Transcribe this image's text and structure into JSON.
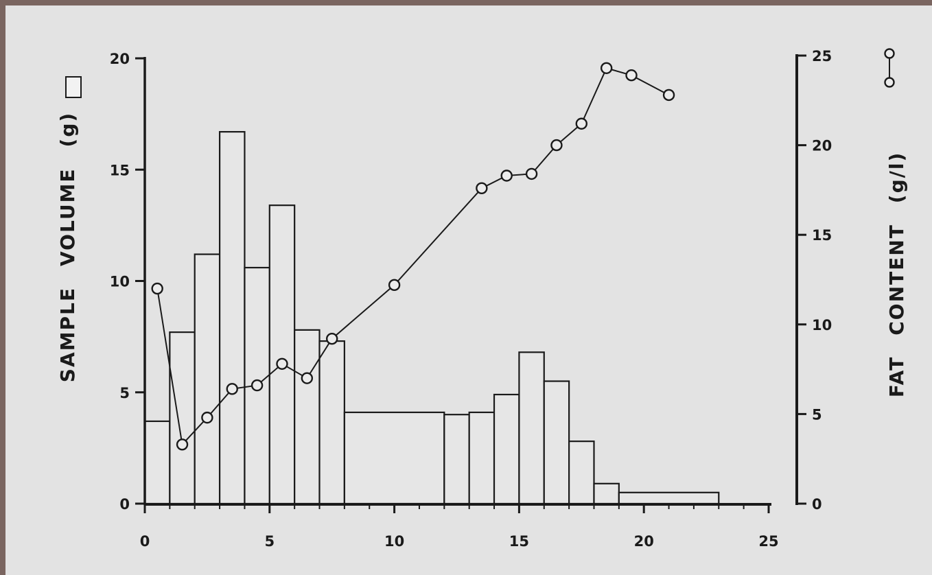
{
  "chart_data": {
    "type": "bar",
    "title": "",
    "xlabel": "",
    "x_ticks": [
      "0",
      "5",
      "10",
      "15",
      "20",
      "25"
    ],
    "xlim": [
      0,
      25
    ],
    "y_left": {
      "label_words": [
        "SAMPLE",
        "VOLUME",
        "(g)"
      ],
      "ticks": [
        "0",
        "5",
        "10",
        "15",
        "20"
      ],
      "ylim": [
        0,
        20
      ]
    },
    "y_right": {
      "label_words": [
        "FAT",
        "CONTENT",
        "(g/l)"
      ],
      "ticks": [
        "0",
        "5",
        "10",
        "15",
        "20",
        "25"
      ],
      "ylim": [
        0,
        25
      ]
    },
    "legend": {
      "bars": "Sample volume (open bars)",
      "line": "Fat content (open circles, connected)"
    },
    "grid": false,
    "series": [
      {
        "type": "bar",
        "axis": "left",
        "bins": [
          {
            "x0": 0,
            "x1": 1,
            "value": 3.7
          },
          {
            "x0": 1,
            "x1": 2,
            "value": 7.7
          },
          {
            "x0": 2,
            "x1": 3,
            "value": 11.2
          },
          {
            "x0": 3,
            "x1": 4,
            "value": 16.7
          },
          {
            "x0": 4,
            "x1": 5,
            "value": 10.6
          },
          {
            "x0": 5,
            "x1": 6,
            "value": 13.4
          },
          {
            "x0": 6,
            "x1": 7,
            "value": 7.8
          },
          {
            "x0": 7,
            "x1": 8,
            "value": 7.3
          },
          {
            "x0": 8,
            "x1": 12,
            "value": 4.1
          },
          {
            "x0": 12,
            "x1": 13,
            "value": 4.0
          },
          {
            "x0": 13,
            "x1": 14,
            "value": 4.1
          },
          {
            "x0": 14,
            "x1": 15,
            "value": 4.9
          },
          {
            "x0": 15,
            "x1": 16,
            "value": 6.8
          },
          {
            "x0": 16,
            "x1": 17,
            "value": 5.5
          },
          {
            "x0": 17,
            "x1": 18,
            "value": 2.8
          },
          {
            "x0": 18,
            "x1": 19,
            "value": 0.9
          },
          {
            "x0": 19,
            "x1": 23,
            "value": 0.5
          }
        ]
      },
      {
        "type": "line",
        "axis": "right",
        "marker": "open-circle",
        "points": [
          {
            "x": 0.5,
            "y": 12.0
          },
          {
            "x": 1.5,
            "y": 3.3
          },
          {
            "x": 2.5,
            "y": 4.8
          },
          {
            "x": 3.5,
            "y": 6.4
          },
          {
            "x": 4.5,
            "y": 6.6
          },
          {
            "x": 5.5,
            "y": 7.8
          },
          {
            "x": 6.5,
            "y": 7.0
          },
          {
            "x": 7.5,
            "y": 9.2
          },
          {
            "x": 10.0,
            "y": 12.2
          },
          {
            "x": 13.5,
            "y": 17.6
          },
          {
            "x": 14.5,
            "y": 18.3
          },
          {
            "x": 15.5,
            "y": 18.4
          },
          {
            "x": 16.5,
            "y": 20.0
          },
          {
            "x": 17.5,
            "y": 21.2
          },
          {
            "x": 18.5,
            "y": 24.3
          },
          {
            "x": 19.5,
            "y": 23.9
          },
          {
            "x": 21.0,
            "y": 22.8
          }
        ]
      }
    ]
  }
}
